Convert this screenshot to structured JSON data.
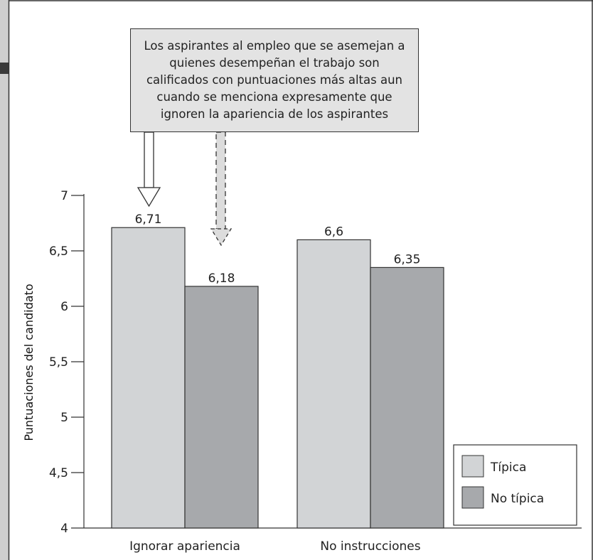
{
  "colors": {
    "series_tipica": "#d2d4d6",
    "series_no_tipica": "#a7a9ac",
    "callout_bg": "#e3e3e3",
    "left_strip": "#cfcfcf",
    "left_strip_dark": "#3a3a3a"
  },
  "annotation": {
    "text": "Los aspirantes al empleo que se asemejan a quienes desempeñan el trabajo son calificados con puntuaciones más altas aun cuando se menciona expresamente que ignoren la apariencia de los aspirantes",
    "solid_arrow_target": "Ignorar apariencia — Típica",
    "dashed_arrow_target": "Ignorar apariencia — No típica"
  },
  "chart_data": {
    "type": "bar",
    "title": "",
    "xlabel": "",
    "ylabel": "Puntuaciones del candidato",
    "categories": [
      "Ignorar apariencia",
      "No instrucciones"
    ],
    "series": [
      {
        "name": "Típica",
        "values": [
          6.71,
          6.6
        ],
        "labels": [
          "6,71",
          "6,6"
        ],
        "color": "#d2d4d6"
      },
      {
        "name": "No típica",
        "values": [
          6.18,
          6.35
        ],
        "labels": [
          "6,18",
          "6,35"
        ],
        "color": "#a7a9ac"
      }
    ],
    "ylim": [
      4,
      7
    ],
    "yticks": [
      4,
      4.5,
      5,
      5.5,
      6,
      6.5,
      7
    ],
    "ytick_labels": [
      "4",
      "4,5",
      "5",
      "5,5",
      "6",
      "6,5",
      "7"
    ],
    "legend": {
      "placement": "bottom-right",
      "entries": [
        "Típica",
        "No típica"
      ]
    },
    "grid": false
  }
}
